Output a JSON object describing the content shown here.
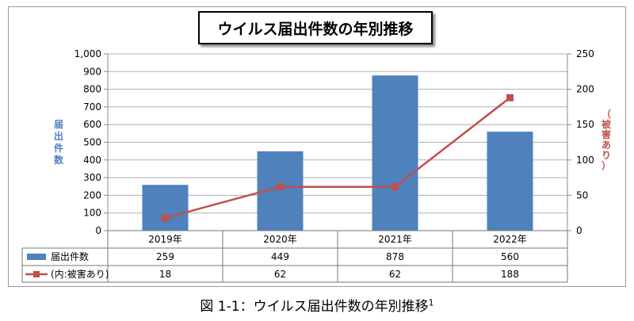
{
  "chart_data": {
    "type": "bar",
    "title": "ウイルス届出件数の年別推移",
    "categories": [
      "2019年",
      "2020年",
      "2021年",
      "2022年"
    ],
    "series": [
      {
        "name": "届出件数",
        "type": "bar",
        "axis": "left",
        "color": "#4f81bd",
        "values": [
          259,
          449,
          878,
          560
        ]
      },
      {
        "name": "(内:被害あり)",
        "type": "line",
        "axis": "right",
        "color": "#c0504d",
        "values": [
          18,
          62,
          62,
          188
        ]
      }
    ],
    "ylabel": "届出件数",
    "ylabel_right": "（被害あり）",
    "ylim": [
      0,
      1000
    ],
    "ylim_right": [
      0,
      250
    ],
    "yticks": [
      "0",
      "100",
      "200",
      "300",
      "400",
      "500",
      "600",
      "700",
      "800",
      "900",
      "1,000"
    ],
    "yticks_right": [
      "0",
      "50",
      "100",
      "150",
      "200",
      "250"
    ],
    "grid": true,
    "data_table": true
  },
  "caption": {
    "text": "図 1-1：ウイルス届出件数の年別推移",
    "footnote": "1"
  }
}
